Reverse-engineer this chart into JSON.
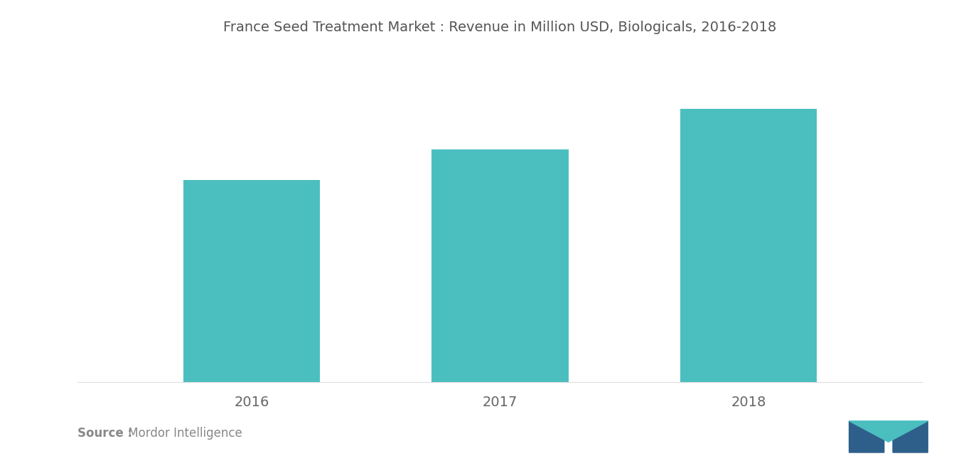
{
  "title": "France Seed Treatment Market : Revenue in Million USD, Biologicals, 2016-2018",
  "categories": [
    "2016",
    "2017",
    "2018"
  ],
  "values": [
    6.5,
    7.5,
    8.8
  ],
  "bar_color": "#4BBFBF",
  "background_color": "#ffffff",
  "source_bold": "Source :",
  "source_regular": " Mordor Intelligence",
  "title_fontsize": 14,
  "tick_fontsize": 14,
  "source_fontsize": 12,
  "ylim": [
    0,
    10.5
  ],
  "bar_width": 0.55
}
